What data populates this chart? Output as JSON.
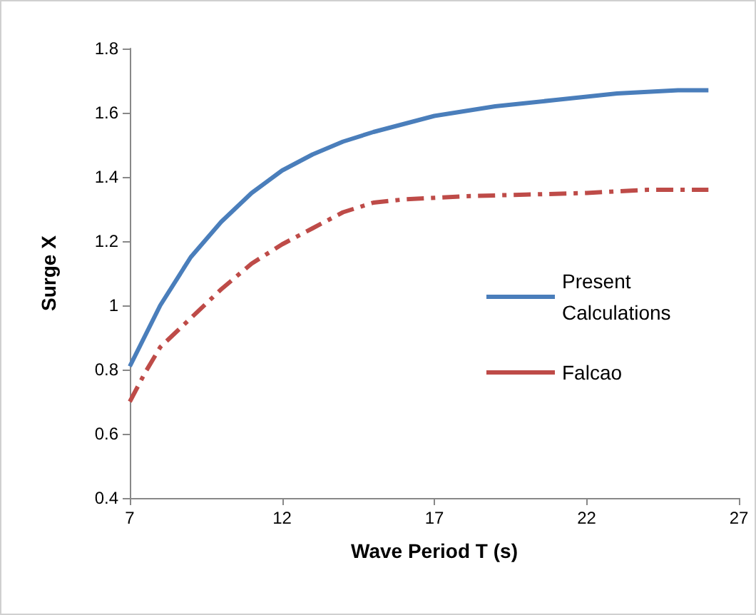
{
  "chart_data": {
    "type": "line",
    "xlabel": "Wave Period T (s)",
    "ylabel": "Surge X",
    "xlim": [
      7,
      27
    ],
    "xticks": [
      7,
      12,
      17,
      22,
      27
    ],
    "ylim": [
      0.4,
      1.8
    ],
    "yticks": [
      0.4,
      0.6,
      0.8,
      1,
      1.2,
      1.4,
      1.6,
      1.8
    ],
    "grid": false,
    "legend": "right",
    "marker": "none",
    "series": [
      {
        "name": "Present Calculations",
        "color": "#4a7ebb",
        "line_style": "solid",
        "x": [
          7,
          8,
          9,
          10,
          11,
          12,
          13,
          14,
          15,
          17,
          19,
          21,
          23,
          25,
          26
        ],
        "values": [
          0.81,
          1.0,
          1.15,
          1.26,
          1.35,
          1.42,
          1.47,
          1.51,
          1.54,
          1.59,
          1.62,
          1.64,
          1.66,
          1.67,
          1.67
        ]
      },
      {
        "name": "Falcao",
        "color": "#be4b48",
        "line_style": "dashdot",
        "x": [
          7,
          7.5,
          8,
          9,
          10,
          11,
          12,
          13,
          14,
          15,
          16,
          18,
          20,
          22,
          24,
          26
        ],
        "values": [
          0.7,
          0.79,
          0.87,
          0.96,
          1.05,
          1.13,
          1.19,
          1.24,
          1.29,
          1.32,
          1.33,
          1.34,
          1.345,
          1.35,
          1.36,
          1.36
        ]
      }
    ]
  }
}
